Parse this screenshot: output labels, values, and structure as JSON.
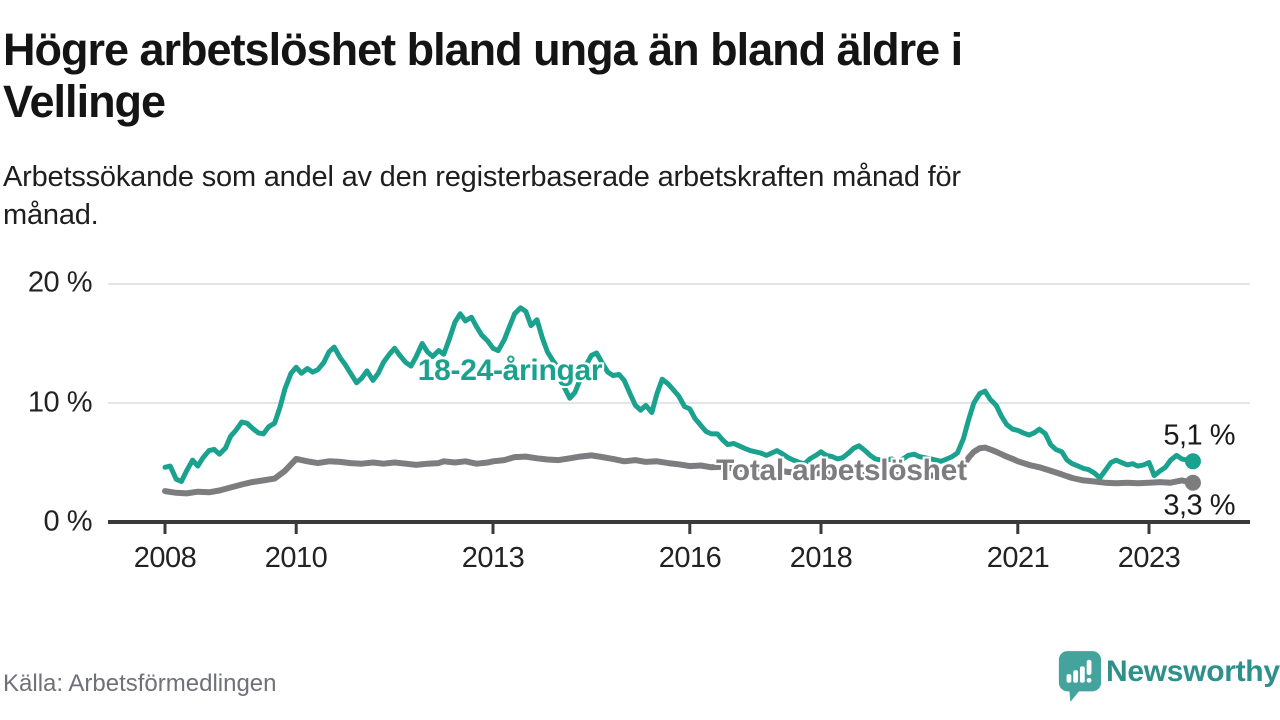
{
  "header": {
    "title_lines": [
      "Högre arbetslöshet bland unga än bland äldre i",
      "Vellinge"
    ],
    "subtitle_lines": [
      "Arbetssökande som andel av den registerbaserade arbetskraften månad för",
      "månad."
    ]
  },
  "footer": {
    "source": "Källa: Arbetsförmedlingen",
    "brand": "Newsworthy"
  },
  "colors": {
    "young_line": "#1aa28e",
    "total_line": "#7d7d80",
    "grid": "#e5e5e5",
    "axis": "#3a3a3a",
    "value_label": "#1a1a1a",
    "source_text": "#70707a",
    "brand_icon_teal": "#44a39c",
    "brand_text_teal": "#2e8f8b"
  },
  "chart_data": {
    "type": "line",
    "title": "Högre arbetslöshet bland unga än bland äldre i Vellinge",
    "subtitle": "Arbetssökande som andel av den registerbaserade arbetskraften månad för månad.",
    "unit": "%",
    "x_axis": {
      "ticks": [
        2008,
        2010,
        2013,
        2016,
        2018,
        2021,
        2023
      ],
      "tick_labels": [
        "2008",
        "2010",
        "2013",
        "2016",
        "2018",
        "2021",
        "2023"
      ],
      "range_years": [
        2007.9,
        2024.3
      ]
    },
    "y_axis": {
      "tick_values": [
        0,
        10,
        20
      ],
      "tick_labels": [
        "0 %",
        "10 %",
        "20 %"
      ],
      "range": [
        0,
        21
      ],
      "grid": true
    },
    "legend_position": "inline-labels",
    "series": [
      {
        "name": "18-24-åringar",
        "color_key": "young_line",
        "end_label": "5,1 %",
        "last_value": 5.1,
        "points": [
          [
            2008.0,
            4.6
          ],
          [
            2008.08,
            4.7
          ],
          [
            2008.17,
            3.6
          ],
          [
            2008.25,
            3.4
          ],
          [
            2008.33,
            4.3
          ],
          [
            2008.42,
            5.2
          ],
          [
            2008.5,
            4.7
          ],
          [
            2008.58,
            5.4
          ],
          [
            2008.67,
            6.0
          ],
          [
            2008.75,
            6.1
          ],
          [
            2008.83,
            5.7
          ],
          [
            2008.92,
            6.2
          ],
          [
            2009.0,
            7.2
          ],
          [
            2009.08,
            7.7
          ],
          [
            2009.17,
            8.4
          ],
          [
            2009.25,
            8.3
          ],
          [
            2009.33,
            7.9
          ],
          [
            2009.42,
            7.5
          ],
          [
            2009.5,
            7.4
          ],
          [
            2009.58,
            8.0
          ],
          [
            2009.67,
            8.3
          ],
          [
            2009.75,
            9.6
          ],
          [
            2009.83,
            11.2
          ],
          [
            2009.92,
            12.5
          ],
          [
            2010.0,
            13.0
          ],
          [
            2010.08,
            12.5
          ],
          [
            2010.17,
            12.9
          ],
          [
            2010.25,
            12.6
          ],
          [
            2010.33,
            12.8
          ],
          [
            2010.42,
            13.4
          ],
          [
            2010.5,
            14.3
          ],
          [
            2010.58,
            14.7
          ],
          [
            2010.67,
            13.8
          ],
          [
            2010.75,
            13.2
          ],
          [
            2010.83,
            12.5
          ],
          [
            2010.92,
            11.7
          ],
          [
            2011.0,
            12.1
          ],
          [
            2011.08,
            12.7
          ],
          [
            2011.17,
            11.9
          ],
          [
            2011.25,
            12.5
          ],
          [
            2011.33,
            13.4
          ],
          [
            2011.42,
            14.1
          ],
          [
            2011.5,
            14.6
          ],
          [
            2011.58,
            14.0
          ],
          [
            2011.67,
            13.4
          ],
          [
            2011.75,
            13.1
          ],
          [
            2011.83,
            13.9
          ],
          [
            2011.92,
            15.0
          ],
          [
            2012.0,
            14.3
          ],
          [
            2012.08,
            13.9
          ],
          [
            2012.17,
            14.4
          ],
          [
            2012.25,
            14.1
          ],
          [
            2012.33,
            15.3
          ],
          [
            2012.42,
            16.8
          ],
          [
            2012.5,
            17.5
          ],
          [
            2012.58,
            16.9
          ],
          [
            2012.67,
            17.2
          ],
          [
            2012.75,
            16.4
          ],
          [
            2012.83,
            15.7
          ],
          [
            2012.92,
            15.2
          ],
          [
            2013.0,
            14.6
          ],
          [
            2013.08,
            14.4
          ],
          [
            2013.17,
            15.3
          ],
          [
            2013.25,
            16.4
          ],
          [
            2013.33,
            17.5
          ],
          [
            2013.42,
            18.0
          ],
          [
            2013.5,
            17.7
          ],
          [
            2013.58,
            16.5
          ],
          [
            2013.67,
            17.0
          ],
          [
            2013.75,
            15.5
          ],
          [
            2013.83,
            14.3
          ],
          [
            2013.92,
            13.5
          ],
          [
            2014.0,
            12.9
          ],
          [
            2014.08,
            11.4
          ],
          [
            2014.17,
            10.4
          ],
          [
            2014.25,
            10.9
          ],
          [
            2014.33,
            12.0
          ],
          [
            2014.42,
            13.2
          ],
          [
            2014.5,
            14.0
          ],
          [
            2014.58,
            14.2
          ],
          [
            2014.67,
            13.3
          ],
          [
            2014.75,
            12.6
          ],
          [
            2014.83,
            12.3
          ],
          [
            2014.92,
            12.4
          ],
          [
            2015.0,
            11.9
          ],
          [
            2015.08,
            10.9
          ],
          [
            2015.17,
            9.8
          ],
          [
            2015.25,
            9.4
          ],
          [
            2015.33,
            9.8
          ],
          [
            2015.42,
            9.2
          ],
          [
            2015.5,
            10.8
          ],
          [
            2015.58,
            12.0
          ],
          [
            2015.67,
            11.6
          ],
          [
            2015.75,
            11.1
          ],
          [
            2015.83,
            10.6
          ],
          [
            2015.92,
            9.7
          ],
          [
            2016.0,
            9.5
          ],
          [
            2016.08,
            8.7
          ],
          [
            2016.17,
            8.1
          ],
          [
            2016.25,
            7.6
          ],
          [
            2016.33,
            7.4
          ],
          [
            2016.42,
            7.4
          ],
          [
            2016.5,
            6.9
          ],
          [
            2016.58,
            6.5
          ],
          [
            2016.67,
            6.6
          ],
          [
            2016.75,
            6.4
          ],
          [
            2016.83,
            6.2
          ],
          [
            2016.92,
            6.0
          ],
          [
            2017.0,
            5.9
          ],
          [
            2017.08,
            5.8
          ],
          [
            2017.17,
            5.6
          ],
          [
            2017.25,
            5.8
          ],
          [
            2017.33,
            6.0
          ],
          [
            2017.42,
            5.7
          ],
          [
            2017.5,
            5.4
          ],
          [
            2017.58,
            5.2
          ],
          [
            2017.67,
            5.0
          ],
          [
            2017.75,
            4.9
          ],
          [
            2017.83,
            5.3
          ],
          [
            2017.92,
            5.6
          ],
          [
            2018.0,
            5.9
          ],
          [
            2018.08,
            5.6
          ],
          [
            2018.17,
            5.5
          ],
          [
            2018.25,
            5.3
          ],
          [
            2018.33,
            5.4
          ],
          [
            2018.42,
            5.8
          ],
          [
            2018.5,
            6.2
          ],
          [
            2018.58,
            6.4
          ],
          [
            2018.67,
            6.0
          ],
          [
            2018.75,
            5.6
          ],
          [
            2018.83,
            5.3
          ],
          [
            2018.92,
            5.2
          ],
          [
            2019.0,
            5.2
          ],
          [
            2019.08,
            5.3
          ],
          [
            2019.17,
            5.1
          ],
          [
            2019.25,
            5.3
          ],
          [
            2019.33,
            5.6
          ],
          [
            2019.42,
            5.7
          ],
          [
            2019.5,
            5.5
          ],
          [
            2019.58,
            5.4
          ],
          [
            2019.67,
            5.3
          ],
          [
            2019.75,
            5.2
          ],
          [
            2019.83,
            5.1
          ],
          [
            2019.92,
            5.3
          ],
          [
            2020.0,
            5.5
          ],
          [
            2020.08,
            5.8
          ],
          [
            2020.17,
            7.0
          ],
          [
            2020.25,
            8.6
          ],
          [
            2020.33,
            10.0
          ],
          [
            2020.42,
            10.8
          ],
          [
            2020.5,
            11.0
          ],
          [
            2020.58,
            10.3
          ],
          [
            2020.67,
            9.8
          ],
          [
            2020.75,
            8.9
          ],
          [
            2020.83,
            8.2
          ],
          [
            2020.92,
            7.8
          ],
          [
            2021.0,
            7.7
          ],
          [
            2021.08,
            7.5
          ],
          [
            2021.17,
            7.3
          ],
          [
            2021.25,
            7.5
          ],
          [
            2021.33,
            7.8
          ],
          [
            2021.42,
            7.4
          ],
          [
            2021.5,
            6.5
          ],
          [
            2021.58,
            6.1
          ],
          [
            2021.67,
            5.9
          ],
          [
            2021.75,
            5.2
          ],
          [
            2021.83,
            4.9
          ],
          [
            2021.92,
            4.7
          ],
          [
            2022.0,
            4.5
          ],
          [
            2022.08,
            4.4
          ],
          [
            2022.17,
            4.1
          ],
          [
            2022.25,
            3.7
          ],
          [
            2022.33,
            4.3
          ],
          [
            2022.42,
            5.0
          ],
          [
            2022.5,
            5.2
          ],
          [
            2022.58,
            5.0
          ],
          [
            2022.67,
            4.8
          ],
          [
            2022.75,
            4.9
          ],
          [
            2022.83,
            4.7
          ],
          [
            2022.92,
            4.8
          ],
          [
            2023.0,
            5.0
          ],
          [
            2023.08,
            3.9
          ],
          [
            2023.17,
            4.3
          ],
          [
            2023.25,
            4.6
          ],
          [
            2023.33,
            5.2
          ],
          [
            2023.42,
            5.6
          ],
          [
            2023.5,
            5.3
          ],
          [
            2023.58,
            5.2
          ],
          [
            2023.67,
            5.1
          ]
        ]
      },
      {
        "name": "Total arbetslöshet",
        "color_key": "total_line",
        "end_label": "3,3 %",
        "last_value": 3.3,
        "points": [
          [
            2008.0,
            2.6
          ],
          [
            2008.17,
            2.45
          ],
          [
            2008.33,
            2.4
          ],
          [
            2008.5,
            2.55
          ],
          [
            2008.67,
            2.5
          ],
          [
            2008.83,
            2.65
          ],
          [
            2009.0,
            2.9
          ],
          [
            2009.17,
            3.15
          ],
          [
            2009.33,
            3.35
          ],
          [
            2009.5,
            3.5
          ],
          [
            2009.67,
            3.65
          ],
          [
            2009.83,
            4.3
          ],
          [
            2010.0,
            5.3
          ],
          [
            2010.17,
            5.1
          ],
          [
            2010.33,
            4.95
          ],
          [
            2010.5,
            5.1
          ],
          [
            2010.67,
            5.05
          ],
          [
            2010.83,
            4.95
          ],
          [
            2011.0,
            4.9
          ],
          [
            2011.17,
            5.0
          ],
          [
            2011.33,
            4.9
          ],
          [
            2011.5,
            5.0
          ],
          [
            2011.67,
            4.9
          ],
          [
            2011.83,
            4.8
          ],
          [
            2012.0,
            4.9
          ],
          [
            2012.17,
            4.95
          ],
          [
            2012.25,
            5.1
          ],
          [
            2012.42,
            5.0
          ],
          [
            2012.58,
            5.1
          ],
          [
            2012.75,
            4.9
          ],
          [
            2012.92,
            5.0
          ],
          [
            2013.0,
            5.1
          ],
          [
            2013.17,
            5.2
          ],
          [
            2013.33,
            5.45
          ],
          [
            2013.5,
            5.5
          ],
          [
            2013.67,
            5.35
          ],
          [
            2013.83,
            5.25
          ],
          [
            2014.0,
            5.2
          ],
          [
            2014.17,
            5.35
          ],
          [
            2014.33,
            5.5
          ],
          [
            2014.5,
            5.6
          ],
          [
            2014.67,
            5.45
          ],
          [
            2014.83,
            5.3
          ],
          [
            2015.0,
            5.1
          ],
          [
            2015.17,
            5.2
          ],
          [
            2015.33,
            5.05
          ],
          [
            2015.5,
            5.1
          ],
          [
            2015.67,
            4.95
          ],
          [
            2015.83,
            4.85
          ],
          [
            2016.0,
            4.7
          ],
          [
            2016.17,
            4.75
          ],
          [
            2016.33,
            4.6
          ],
          [
            2016.5,
            4.65
          ],
          [
            2016.67,
            4.5
          ],
          [
            2016.83,
            4.45
          ],
          [
            2017.0,
            4.4
          ],
          [
            2017.17,
            4.3
          ],
          [
            2017.33,
            4.35
          ],
          [
            2017.5,
            4.2
          ],
          [
            2017.67,
            4.15
          ],
          [
            2017.83,
            4.1
          ],
          [
            2018.0,
            4.1
          ],
          [
            2018.17,
            4.05
          ],
          [
            2018.33,
            4.1
          ],
          [
            2018.5,
            4.0
          ],
          [
            2018.67,
            3.95
          ],
          [
            2018.83,
            3.9
          ],
          [
            2019.0,
            3.9
          ],
          [
            2019.17,
            3.95
          ],
          [
            2019.33,
            4.0
          ],
          [
            2019.5,
            3.95
          ],
          [
            2019.67,
            3.9
          ],
          [
            2019.83,
            3.95
          ],
          [
            2020.0,
            4.0
          ],
          [
            2020.08,
            4.2
          ],
          [
            2020.17,
            4.7
          ],
          [
            2020.25,
            5.4
          ],
          [
            2020.33,
            5.9
          ],
          [
            2020.42,
            6.2
          ],
          [
            2020.5,
            6.25
          ],
          [
            2020.58,
            6.1
          ],
          [
            2020.67,
            5.9
          ],
          [
            2020.75,
            5.7
          ],
          [
            2020.83,
            5.5
          ],
          [
            2020.92,
            5.3
          ],
          [
            2021.0,
            5.1
          ],
          [
            2021.17,
            4.8
          ],
          [
            2021.33,
            4.6
          ],
          [
            2021.5,
            4.3
          ],
          [
            2021.67,
            4.0
          ],
          [
            2021.83,
            3.7
          ],
          [
            2022.0,
            3.5
          ],
          [
            2022.17,
            3.4
          ],
          [
            2022.33,
            3.3
          ],
          [
            2022.5,
            3.25
          ],
          [
            2022.67,
            3.3
          ],
          [
            2022.83,
            3.25
          ],
          [
            2023.0,
            3.3
          ],
          [
            2023.17,
            3.35
          ],
          [
            2023.33,
            3.3
          ],
          [
            2023.5,
            3.5
          ],
          [
            2023.58,
            3.4
          ],
          [
            2023.67,
            3.3
          ]
        ]
      }
    ]
  }
}
